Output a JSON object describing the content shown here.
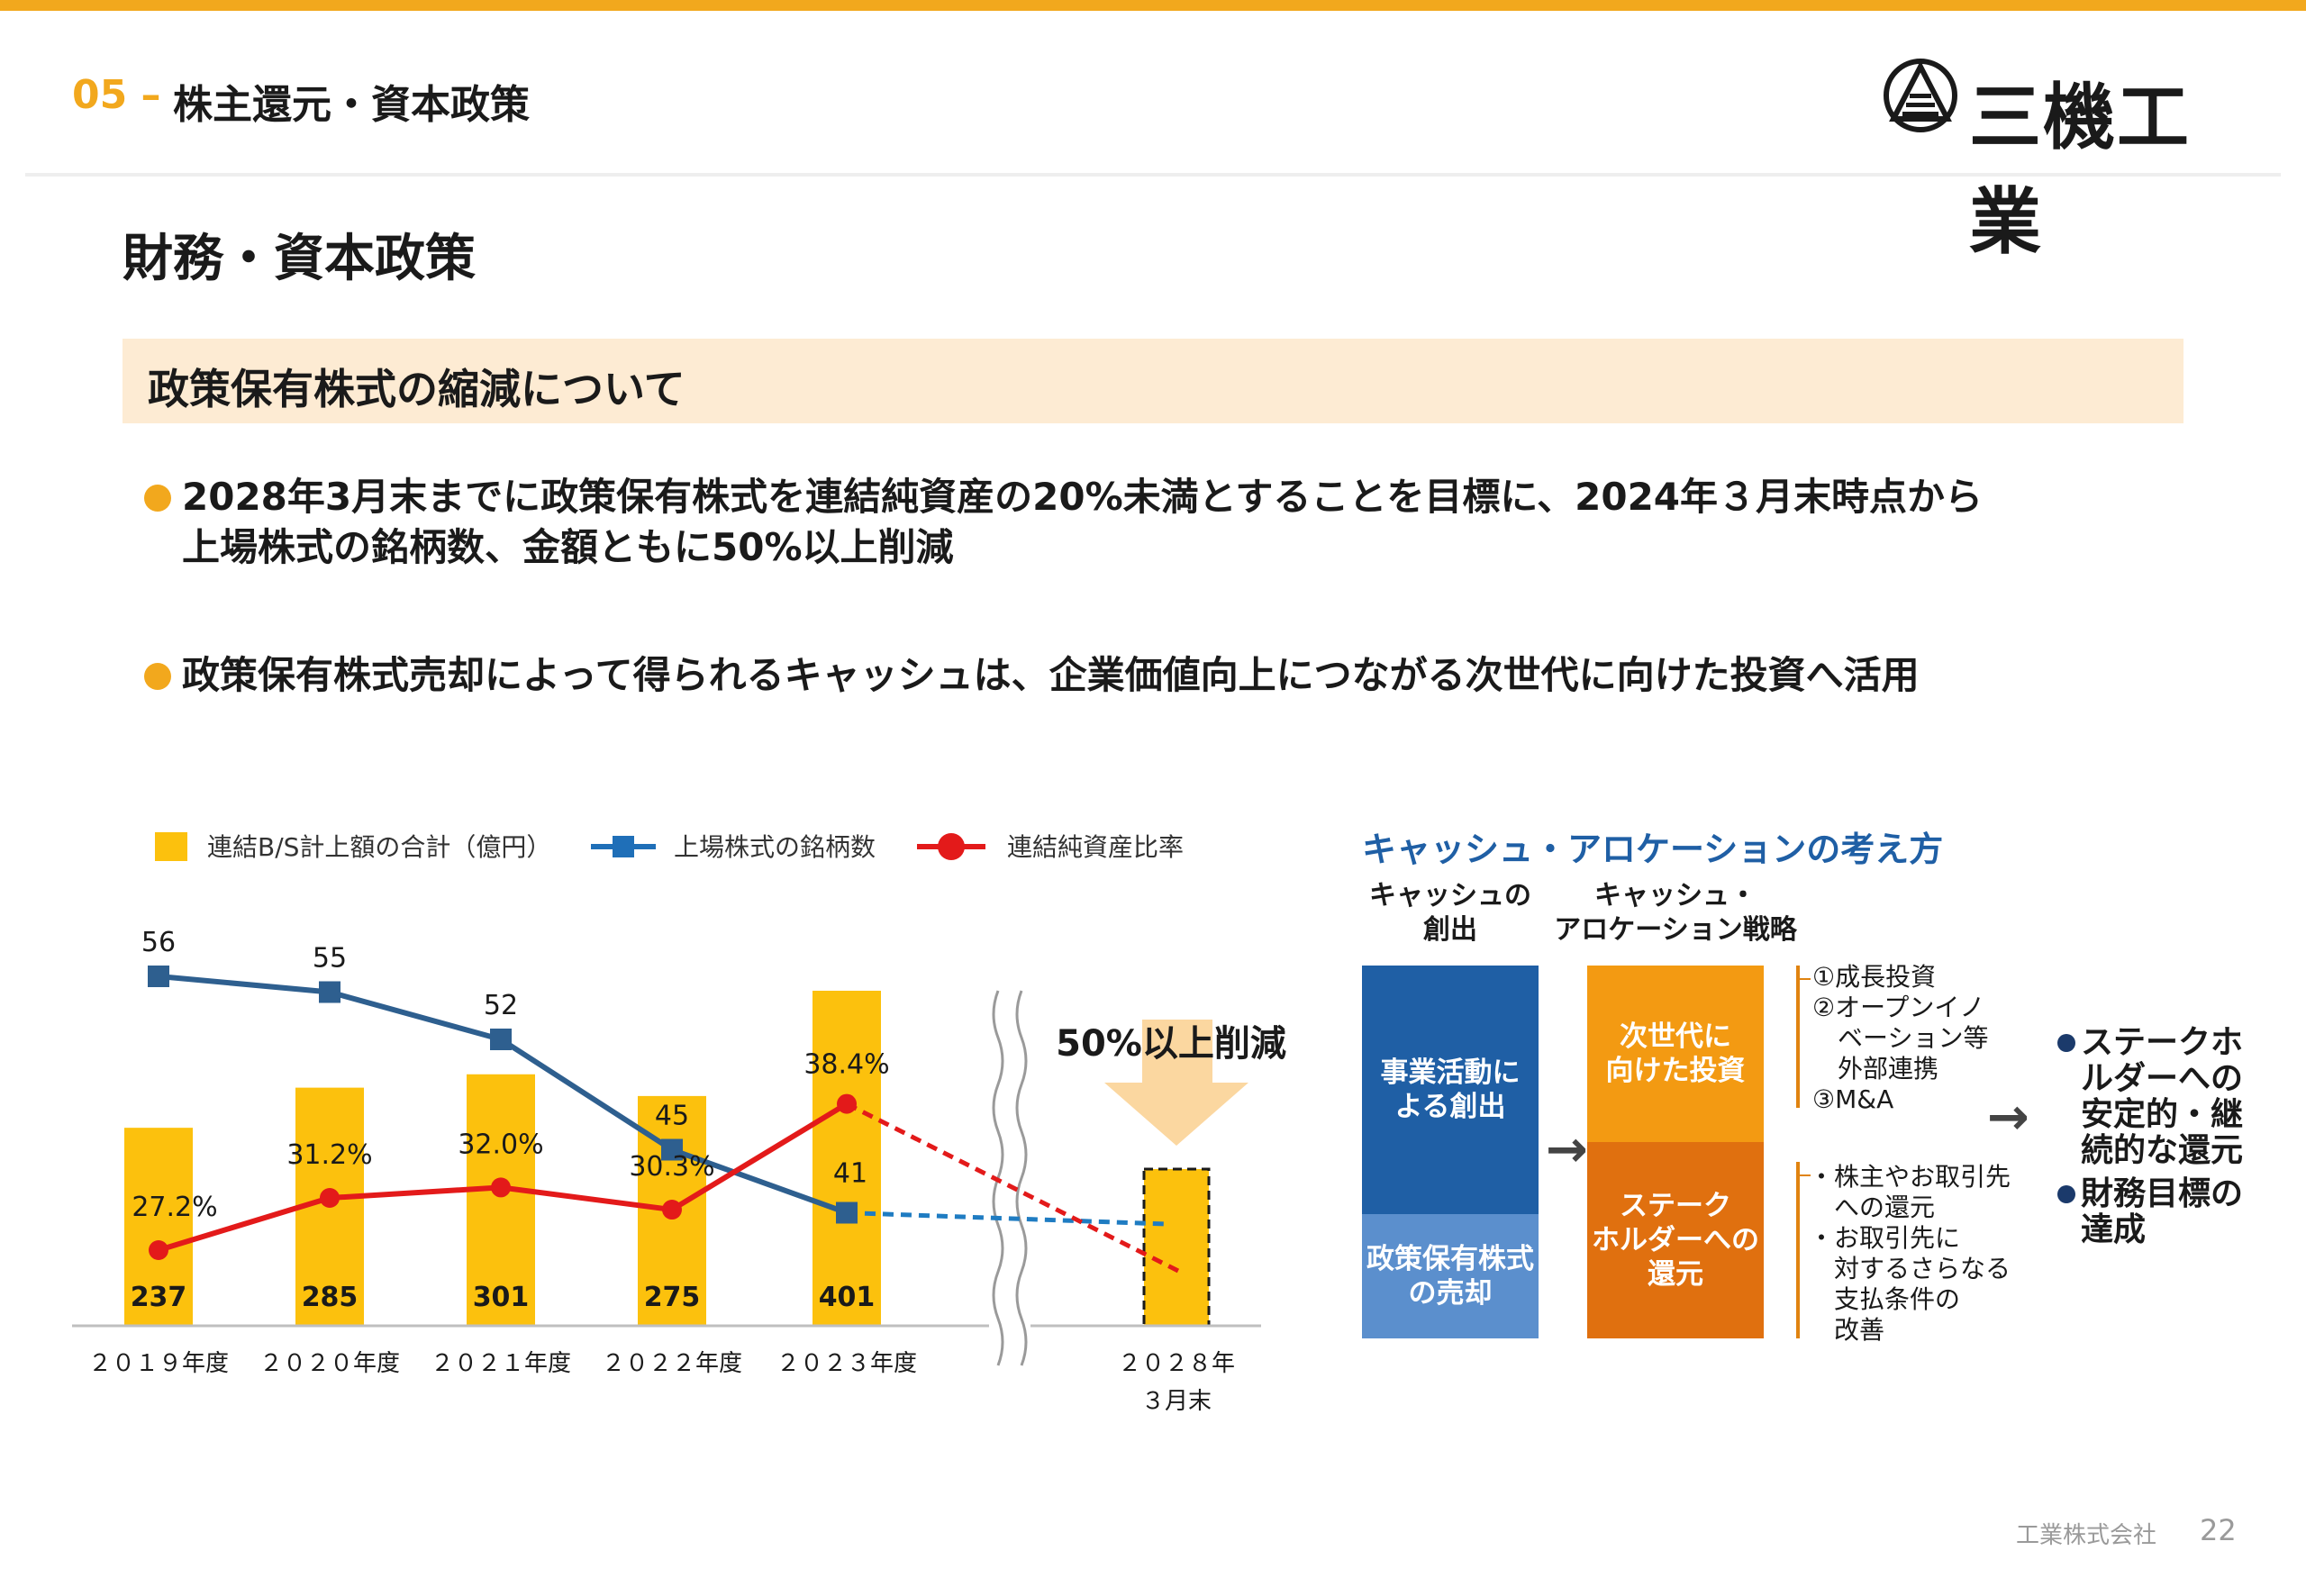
{
  "header": {
    "section_number": "05 –",
    "section_title": "株主還元・資本政策",
    "logo_text": "三機工業"
  },
  "page_title": "財務・資本政策",
  "subheading": "政策保有株式の縮減について",
  "bullets": [
    {
      "line1": "2028年3月末までに政策保有株式を連結純資産の20%未満とすることを目標に、2024年３月末時点から",
      "line2": "上場株式の銘柄数、金額ともに50%以上削減"
    },
    {
      "line1": "政策保有株式売却によって得られるキャッシュは、企業価値向上につながる次世代に向けた投資へ活用"
    }
  ],
  "chart_data": {
    "type": "bar",
    "categories": [
      "２０１９年度",
      "２０２０年度",
      "２０２１年度",
      "２０２２年度",
      "２０２３年度"
    ],
    "target_category": [
      "２０２８年",
      "３月末"
    ],
    "series": [
      {
        "name": "連結B/S計上額の合計（億円）",
        "kind": "bar",
        "color": "#fcc10d",
        "values": [
          237,
          285,
          301,
          275,
          401
        ]
      },
      {
        "name": "上場株式の銘柄数",
        "kind": "line",
        "color": "#2e5f8f",
        "values": [
          56,
          55,
          52,
          45,
          41
        ]
      },
      {
        "name": "連結純資産比率",
        "kind": "line",
        "color": "#e31a1a",
        "values": [
          27.2,
          31.2,
          32.0,
          30.3,
          38.4
        ],
        "unit": "%"
      }
    ],
    "ratio_labels": [
      "27.2%",
      "31.2%",
      "32.0%",
      "30.3%",
      "38.4%"
    ],
    "reduction_label": "50%以上削減",
    "legend_position": "top",
    "grid": false
  },
  "allocation": {
    "title": "キャッシュ・アロケーションの考え方",
    "col1_header": [
      "キャッシュの",
      "創出"
    ],
    "col2_header": [
      "キャッシュ・",
      "アロケーション戦略"
    ],
    "source_top": [
      "事業活動に",
      "よる創出"
    ],
    "source_bottom": [
      "政策保有株式",
      "の売却"
    ],
    "use_top": [
      "次世代に",
      "向けた投資"
    ],
    "use_bottom": [
      "ステーク",
      "ホルダーへの",
      "還元"
    ],
    "list_top": [
      "①成長投資",
      "②オープンイノ",
      "　ベーション等",
      "　外部連携",
      "③M&A"
    ],
    "list_bottom": [
      "・株主やお取引先",
      "　への還元",
      "・お取引先に",
      "　対するさらなる",
      "　支払条件の",
      "　改善"
    ],
    "goals": [
      [
        "ステークホ",
        "ルダーへの",
        "安定的・継",
        "続的な還元"
      ],
      [
        "財務目標の",
        "達成"
      ]
    ],
    "colors": {
      "dark_blue": "#1f5fa5",
      "light_blue": "#5b8fcd",
      "orange": "#f39a12",
      "dark_orange": "#e0700f"
    }
  },
  "footer": {
    "company": "工業株式会社",
    "page": "22"
  }
}
